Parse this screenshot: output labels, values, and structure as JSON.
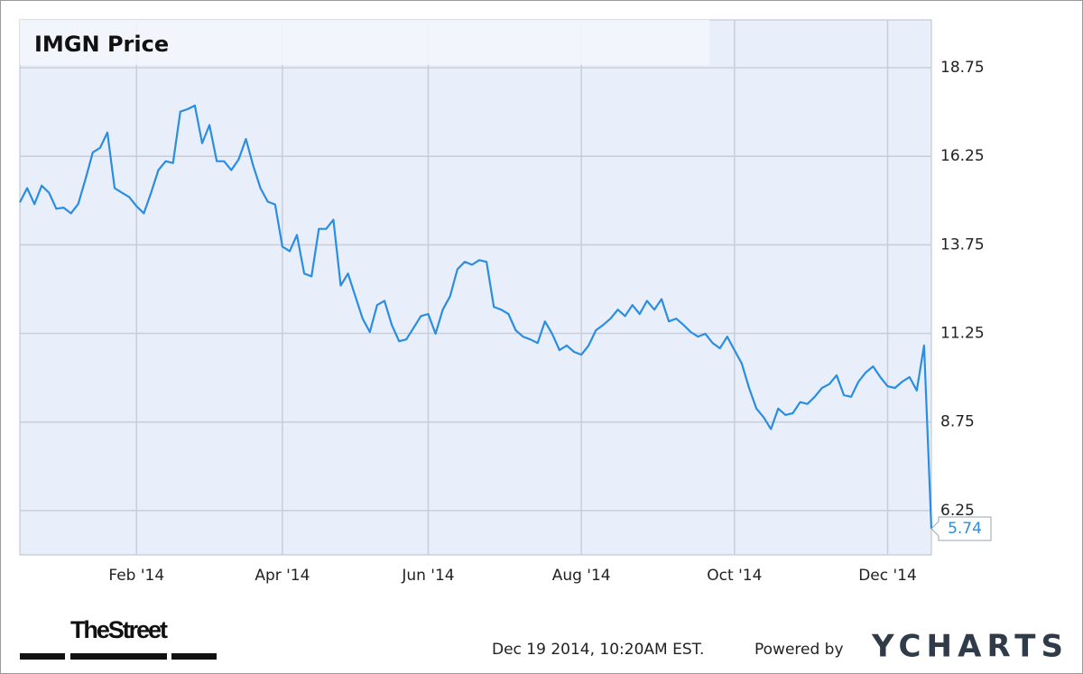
{
  "chart_data": {
    "type": "line",
    "title": "IMGN Price",
    "categories": [
      null,
      null,
      null,
      null,
      null,
      null,
      null,
      null,
      null,
      null,
      null,
      null,
      null,
      null,
      null,
      null,
      "Feb '14",
      null,
      null,
      null,
      null,
      null,
      null,
      null,
      null,
      null,
      null,
      null,
      null,
      null,
      null,
      null,
      null,
      null,
      null,
      null,
      "Apr '14",
      null,
      null,
      null,
      null,
      null,
      null,
      null,
      null,
      null,
      null,
      null,
      null,
      null,
      null,
      null,
      null,
      null,
      null,
      null,
      "Jun '14",
      null,
      null,
      null,
      null,
      null,
      null,
      null,
      null,
      null,
      null,
      null,
      null,
      null,
      null,
      null,
      null,
      null,
      null,
      null,
      null,
      "Aug '14",
      null,
      null,
      null,
      null,
      null,
      null,
      null,
      null,
      null,
      null,
      null,
      null,
      null,
      null,
      null,
      null,
      null,
      null,
      null,
      null,
      "Oct '14",
      null,
      null,
      null,
      null,
      null,
      null,
      null,
      null,
      null,
      null,
      null,
      null,
      null,
      null,
      null,
      null,
      null,
      null,
      null,
      null,
      "Dec '14",
      null,
      null,
      null,
      null,
      null,
      null
    ],
    "values": [
      14.95,
      15.35,
      14.9,
      15.42,
      15.22,
      14.77,
      14.8,
      14.64,
      14.9,
      15.6,
      16.36,
      16.49,
      16.92,
      15.35,
      15.22,
      15.1,
      14.84,
      14.64,
      15.22,
      15.86,
      16.11,
      16.06,
      17.51,
      17.58,
      17.68,
      16.62,
      17.13,
      16.11,
      16.11,
      15.86,
      16.16,
      16.74,
      15.98,
      15.35,
      14.97,
      14.89,
      13.7,
      13.57,
      14.03,
      12.94,
      12.86,
      14.2,
      14.2,
      14.46,
      12.6,
      12.94,
      12.3,
      11.67,
      11.29,
      12.05,
      12.17,
      11.49,
      11.03,
      11.08,
      11.41,
      11.74,
      11.8,
      11.24,
      11.92,
      12.3,
      13.06,
      13.27,
      13.19,
      13.32,
      13.27,
      12.0,
      11.92,
      11.8,
      11.34,
      11.16,
      11.08,
      10.98,
      11.59,
      11.24,
      10.78,
      10.91,
      10.73,
      10.65,
      10.91,
      11.34,
      11.49,
      11.67,
      11.92,
      11.74,
      12.05,
      11.8,
      12.17,
      11.92,
      12.22,
      11.59,
      11.67,
      11.49,
      11.29,
      11.16,
      11.24,
      10.98,
      10.83,
      11.16,
      10.78,
      10.4,
      9.71,
      9.13,
      8.88,
      8.55,
      9.13,
      8.95,
      9.0,
      9.31,
      9.26,
      9.46,
      9.71,
      9.82,
      10.07,
      9.51,
      9.46,
      9.89,
      10.15,
      10.32,
      10.02,
      9.76,
      9.71,
      9.89,
      10.02,
      9.64,
      10.91,
      5.74
    ],
    "color": "#2b8de0",
    "ylim": [
      5,
      20.1
    ],
    "yticks": [
      6.25,
      8.75,
      11.25,
      13.75,
      16.25,
      18.75
    ],
    "grid": true
  },
  "branding": {
    "source": "TheStreet",
    "timestamp": "Dec 19 2014, 10:20AM EST.",
    "powered_by": "Powered by",
    "logo": "YCHARTS"
  }
}
